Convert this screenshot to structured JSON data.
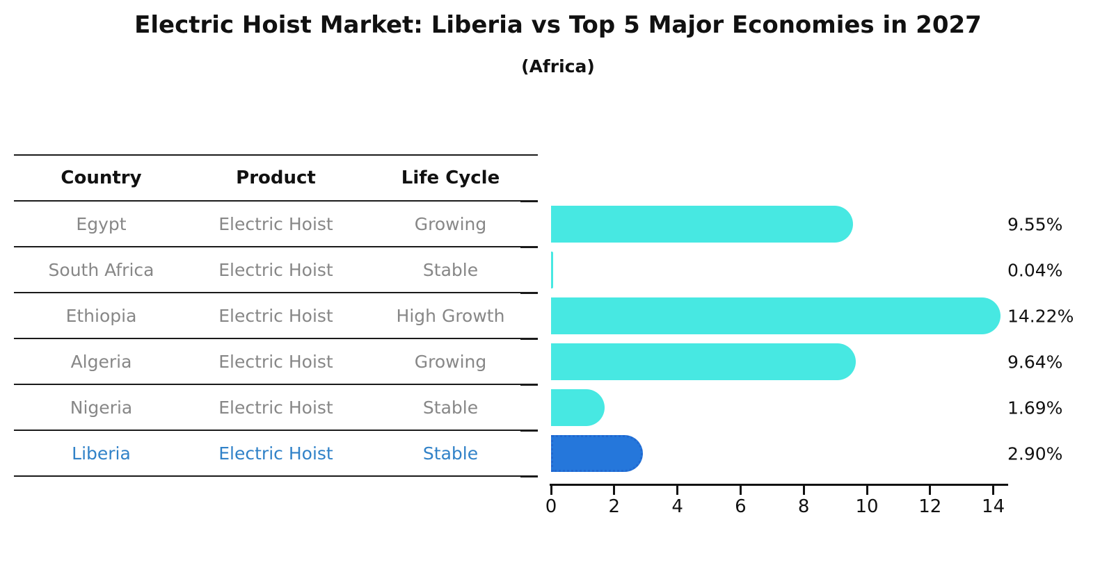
{
  "chart_data": {
    "type": "bar",
    "orientation": "horizontal",
    "title": "Electric Hoist Market: Liberia vs Top 5 Major Economies in 2027",
    "subtitle": "(Africa)",
    "table_headers": [
      "Country",
      "Product",
      "Life Cycle"
    ],
    "categories": [
      "Egypt",
      "South Africa",
      "Ethiopia",
      "Algeria",
      "Nigeria",
      "Liberia"
    ],
    "values": [
      9.55,
      0.04,
      14.22,
      9.64,
      1.69,
      2.9
    ],
    "rows": [
      {
        "country": "Egypt",
        "product": "Electric Hoist",
        "life_cycle": "Growing",
        "value": 9.55,
        "value_label": "9.55%",
        "highlight": false
      },
      {
        "country": "South Africa",
        "product": "Electric Hoist",
        "life_cycle": "Stable",
        "value": 0.04,
        "value_label": "0.04%",
        "highlight": false
      },
      {
        "country": "Ethiopia",
        "product": "Electric Hoist",
        "life_cycle": "High Growth",
        "value": 14.22,
        "value_label": "14.22%",
        "highlight": false
      },
      {
        "country": "Algeria",
        "product": "Electric Hoist",
        "life_cycle": "Growing",
        "value": 9.64,
        "value_label": "9.64%",
        "highlight": false
      },
      {
        "country": "Nigeria",
        "product": "Electric Hoist",
        "life_cycle": "Stable",
        "value": 1.69,
        "value_label": "1.69%",
        "highlight": false
      },
      {
        "country": "Liberia",
        "product": "Electric Hoist",
        "life_cycle": "Stable",
        "value": 2.9,
        "value_label": "2.90%",
        "highlight": true
      }
    ],
    "xlabel": "",
    "ylabel": "",
    "xlim": [
      0,
      14.47
    ],
    "x_ticks": [
      0,
      2,
      4,
      6,
      8,
      10,
      12,
      14
    ],
    "grid": false,
    "legend": false,
    "colors": {
      "bar": "#47e8e2",
      "highlight_bar": "#2577db",
      "highlight_border": "#2068d0",
      "highlight_text": "#3182c8",
      "table_text": "#878787",
      "header_text": "#111111",
      "axis": "#111111"
    }
  }
}
